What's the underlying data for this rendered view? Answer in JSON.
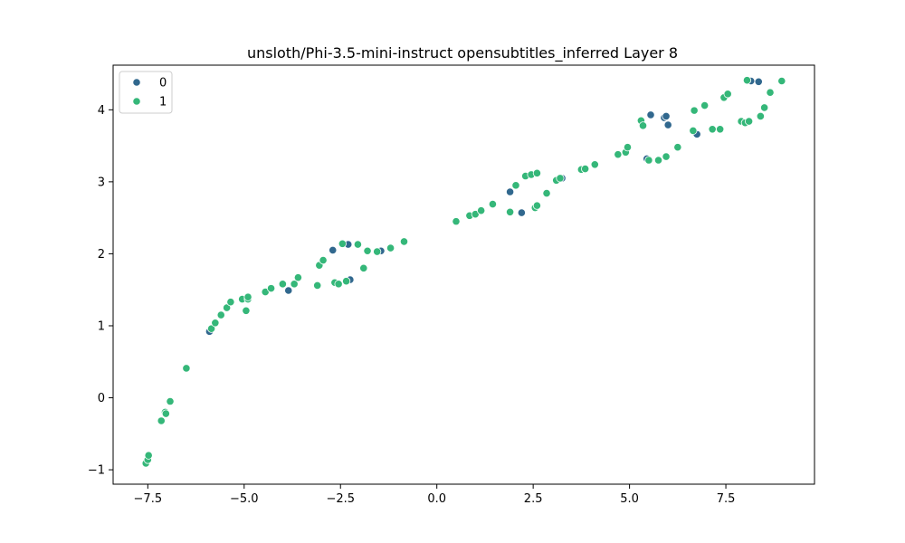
{
  "chart_data": {
    "type": "scatter",
    "title": "unsloth/Phi-3.5-mini-instruct opensubtitles_inferred Layer 8",
    "xlabel": "",
    "ylabel": "",
    "xlim": [
      -8.4,
      9.8
    ],
    "ylim": [
      -1.2,
      4.62
    ],
    "xticks": [
      -7.5,
      -5.0,
      -2.5,
      0.0,
      2.5,
      5.0,
      7.5
    ],
    "xtick_labels": [
      "−7.5",
      "−5.0",
      "−2.5",
      "0.0",
      "2.5",
      "5.0",
      "7.5"
    ],
    "yticks": [
      -1,
      0,
      1,
      2,
      3,
      4
    ],
    "ytick_labels": [
      "−1",
      "0",
      "1",
      "2",
      "3",
      "4"
    ],
    "grid": false,
    "legend": {
      "position": "top-left",
      "entries": [
        {
          "label": "0",
          "color": "#31688e"
        },
        {
          "label": "1",
          "color": "#35b779"
        }
      ]
    },
    "series": [
      {
        "name": "0",
        "color": "#31688e",
        "points": [
          [
            -5.9,
            0.92
          ],
          [
            -3.85,
            1.49
          ],
          [
            -2.7,
            2.05
          ],
          [
            -2.3,
            2.13
          ],
          [
            -2.25,
            1.64
          ],
          [
            -1.45,
            2.04
          ],
          [
            1.9,
            2.86
          ],
          [
            2.2,
            2.57
          ],
          [
            3.25,
            3.05
          ],
          [
            5.45,
            3.32
          ],
          [
            5.55,
            3.93
          ],
          [
            5.9,
            3.89
          ],
          [
            5.95,
            3.91
          ],
          [
            6.0,
            3.79
          ],
          [
            6.75,
            3.66
          ],
          [
            8.15,
            4.4
          ],
          [
            8.35,
            4.39
          ]
        ]
      },
      {
        "name": "1",
        "color": "#35b779",
        "points": [
          [
            -7.55,
            -0.91
          ],
          [
            -7.5,
            -0.86
          ],
          [
            -7.48,
            -0.8
          ],
          [
            -7.15,
            -0.32
          ],
          [
            -7.05,
            -0.2
          ],
          [
            -7.03,
            -0.22
          ],
          [
            -6.92,
            -0.05
          ],
          [
            -6.5,
            0.41
          ],
          [
            -5.85,
            0.96
          ],
          [
            -5.75,
            1.04
          ],
          [
            -5.6,
            1.15
          ],
          [
            -5.45,
            1.25
          ],
          [
            -5.35,
            1.33
          ],
          [
            -5.05,
            1.37
          ],
          [
            -4.95,
            1.21
          ],
          [
            -4.9,
            1.37
          ],
          [
            -4.9,
            1.4
          ],
          [
            -4.45,
            1.47
          ],
          [
            -4.3,
            1.52
          ],
          [
            -4.0,
            1.58
          ],
          [
            -3.7,
            1.58
          ],
          [
            -3.6,
            1.67
          ],
          [
            -3.1,
            1.56
          ],
          [
            -3.05,
            1.84
          ],
          [
            -2.95,
            1.91
          ],
          [
            -2.65,
            1.6
          ],
          [
            -2.55,
            1.58
          ],
          [
            -2.45,
            2.14
          ],
          [
            -2.35,
            1.62
          ],
          [
            -2.05,
            2.13
          ],
          [
            -1.9,
            1.8
          ],
          [
            -1.8,
            2.04
          ],
          [
            -1.55,
            2.03
          ],
          [
            -1.2,
            2.08
          ],
          [
            -0.85,
            2.17
          ],
          [
            0.5,
            2.45
          ],
          [
            0.85,
            2.53
          ],
          [
            1.0,
            2.55
          ],
          [
            1.15,
            2.6
          ],
          [
            1.45,
            2.69
          ],
          [
            1.9,
            2.58
          ],
          [
            2.05,
            2.95
          ],
          [
            2.3,
            3.08
          ],
          [
            2.45,
            3.1
          ],
          [
            2.55,
            2.64
          ],
          [
            2.6,
            3.12
          ],
          [
            2.6,
            2.67
          ],
          [
            2.85,
            2.84
          ],
          [
            3.1,
            3.02
          ],
          [
            3.2,
            3.05
          ],
          [
            3.75,
            3.17
          ],
          [
            3.85,
            3.18
          ],
          [
            4.1,
            3.24
          ],
          [
            4.7,
            3.38
          ],
          [
            4.9,
            3.41
          ],
          [
            4.95,
            3.48
          ],
          [
            5.3,
            3.85
          ],
          [
            5.35,
            3.78
          ],
          [
            5.5,
            3.29
          ],
          [
            5.5,
            3.3
          ],
          [
            5.75,
            3.3
          ],
          [
            5.95,
            3.35
          ],
          [
            6.25,
            3.48
          ],
          [
            6.65,
            3.71
          ],
          [
            6.68,
            3.99
          ],
          [
            6.95,
            4.06
          ],
          [
            7.15,
            3.73
          ],
          [
            7.35,
            3.73
          ],
          [
            7.45,
            4.17
          ],
          [
            7.55,
            4.22
          ],
          [
            7.9,
            3.84
          ],
          [
            8.0,
            3.82
          ],
          [
            8.05,
            4.41
          ],
          [
            8.1,
            3.84
          ],
          [
            8.4,
            3.91
          ],
          [
            8.5,
            4.03
          ],
          [
            8.65,
            4.24
          ],
          [
            8.95,
            4.4
          ]
        ]
      }
    ]
  }
}
